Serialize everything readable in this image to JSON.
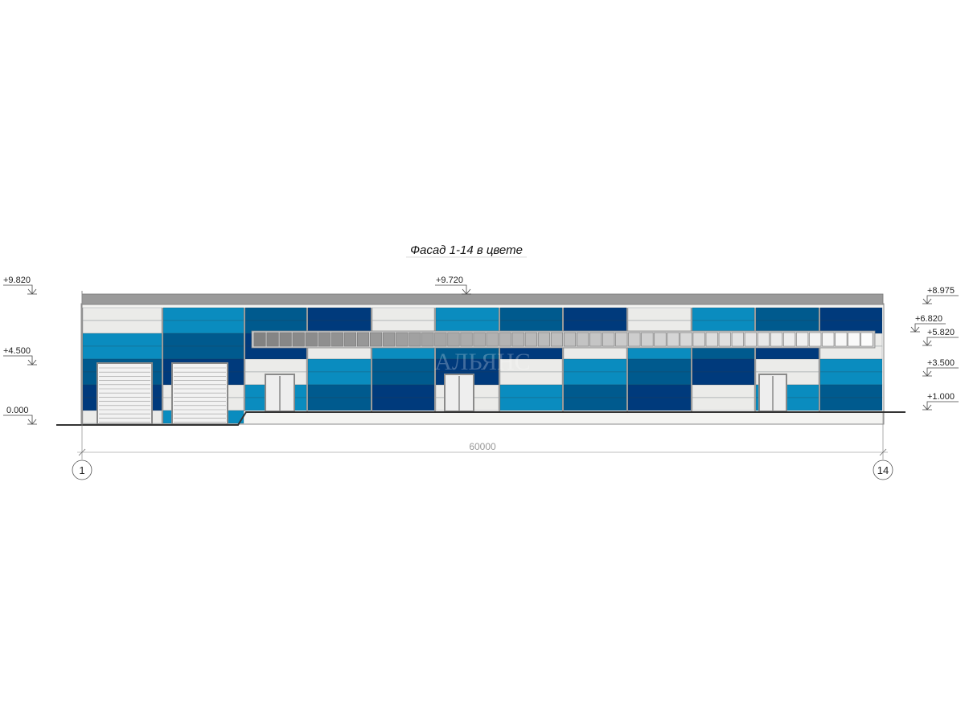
{
  "title": "Фасад 1-14 в цвете",
  "watermark": "АЛЬЯНС",
  "dimension": "60000",
  "axes": {
    "left": "1",
    "right": "14"
  },
  "elevations": {
    "left": [
      "+9.820",
      "+4.500",
      "0.000"
    ],
    "top": "+9.720",
    "right": [
      "+8.975",
      "+6.820",
      "+5.820",
      "+3.500",
      "+1.000"
    ]
  },
  "colors": {
    "L": "#ebebe9",
    "A": "#0a8cbf",
    "B": "#005a8e",
    "C": "#003a7c",
    "roof": "#9a9a9a",
    "outline": "#8a8a8a"
  },
  "facade": {
    "bays": [
      [
        "L",
        "L",
        "A",
        "A",
        "B",
        "B",
        "C",
        "C",
        "L"
      ],
      [
        "A",
        "A",
        "B",
        "B",
        "C",
        "C",
        "L",
        "L",
        "A"
      ],
      [
        "B",
        "B",
        "C",
        "C",
        "L",
        "L",
        "A",
        "A"
      ],
      [
        "C",
        "C",
        "C",
        "L",
        "A",
        "A",
        "B",
        "B"
      ],
      [
        "L",
        "L",
        "L",
        "A",
        "B",
        "B",
        "C",
        "C"
      ],
      [
        "A",
        "A",
        "B",
        "B",
        "C",
        "C",
        "L",
        "L"
      ],
      [
        "B",
        "B",
        "C",
        "C",
        "L",
        "L",
        "A",
        "A"
      ],
      [
        "C",
        "C",
        "C",
        "L",
        "A",
        "A",
        "B",
        "B"
      ],
      [
        "L",
        "L",
        "L",
        "A",
        "B",
        "B",
        "C",
        "C"
      ],
      [
        "A",
        "A",
        "B",
        "B",
        "C",
        "C",
        "L",
        "L"
      ],
      [
        "B",
        "B",
        "C",
        "C",
        "L",
        "L",
        "A",
        "A"
      ],
      [
        "C",
        "C",
        "L",
        "L",
        "A",
        "A",
        "B",
        "B"
      ]
    ],
    "window_panes": 48
  }
}
